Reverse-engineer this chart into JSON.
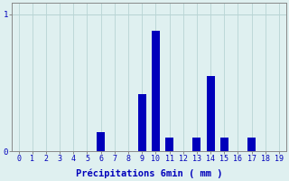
{
  "values": [
    0,
    0,
    0,
    0,
    0,
    0,
    0.14,
    0,
    0,
    0.42,
    0.88,
    0.1,
    0,
    0.1,
    0.55,
    0.1,
    0,
    0.1,
    0,
    0
  ],
  "xlabel": "Précipitations 6min ( mm )",
  "ytick_labels": [
    "0",
    "1"
  ],
  "ytick_vals": [
    0,
    1
  ],
  "xlim": [
    -0.5,
    19.5
  ],
  "ylim": [
    0,
    1.08
  ],
  "bar_color": "#0000bb",
  "bg_color": "#dff0f0",
  "grid_color": "#b8d4d4",
  "tick_color": "#0000bb",
  "label_color": "#0000bb",
  "axis_color": "#888888",
  "xlabel_fontsize": 7.5,
  "tick_fontsize": 6.0
}
